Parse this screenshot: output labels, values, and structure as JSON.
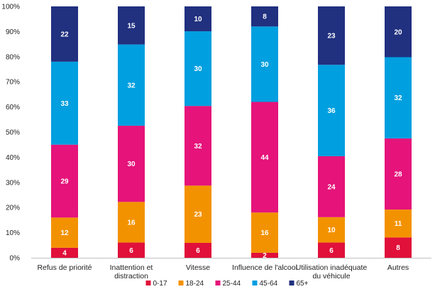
{
  "chart_data": {
    "type": "bar",
    "stacked": true,
    "percent": true,
    "categories": [
      [
        "Refus de priorité"
      ],
      [
        "Inattention et",
        "distraction"
      ],
      [
        "Vitesse"
      ],
      [
        "Influence de l'alcool"
      ],
      [
        "Utilisation inadéquate",
        "du véhicule"
      ],
      [
        "Autres"
      ]
    ],
    "series": [
      {
        "name": "0-17",
        "color": "#e0103a",
        "values": [
          4,
          6,
          6,
          2,
          6,
          8
        ]
      },
      {
        "name": "18-24",
        "color": "#f39200",
        "values": [
          12,
          16,
          23,
          16,
          10,
          11
        ]
      },
      {
        "name": "25-44",
        "color": "#e5137a",
        "values": [
          29,
          30,
          32,
          44,
          24,
          28
        ]
      },
      {
        "name": "45-64",
        "color": "#009fe0",
        "values": [
          33,
          32,
          30,
          30,
          36,
          32
        ]
      },
      {
        "name": "65+",
        "color": "#21307f",
        "values": [
          22,
          15,
          10,
          8,
          23,
          20
        ]
      }
    ],
    "y_ticks": [
      "0%",
      "10%",
      "20%",
      "30%",
      "40%",
      "50%",
      "60%",
      "70%",
      "80%",
      "90%",
      "100%"
    ],
    "ylim": [
      0,
      100
    ],
    "grid": false,
    "legend": "bottom"
  }
}
